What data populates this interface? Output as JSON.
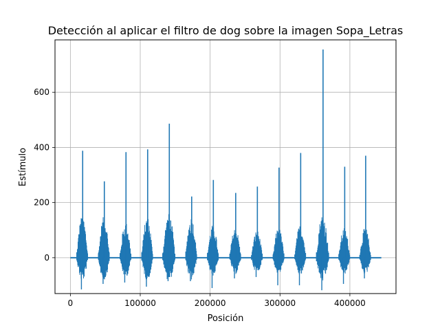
{
  "chart_data": {
    "type": "line",
    "title": "Detección al aplicar el filtro de dog sobre la imagen Sopa_Letras",
    "xlabel": "Posición",
    "ylabel": "Estímulo",
    "xlim": [
      -22000,
      466000
    ],
    "ylim": [
      -130,
      790
    ],
    "x_ticks": [
      0,
      100000,
      200000,
      300000,
      400000
    ],
    "x_tick_labels": [
      "0",
      "100000",
      "200000",
      "300000",
      "400000"
    ],
    "y_ticks": [
      0,
      200,
      400,
      600
    ],
    "y_tick_labels": [
      "0",
      "200",
      "400",
      "600"
    ],
    "grid": true,
    "line_color": "#1f77b4",
    "signal_x_range": [
      0,
      445000
    ],
    "baseline": 0,
    "bursts": [
      {
        "center": 17000,
        "half_width": 8000,
        "peak": 388,
        "trough": -115,
        "envelope": 155
      },
      {
        "center": 48000,
        "half_width": 8000,
        "peak": 277,
        "trough": -95,
        "envelope": 150
      },
      {
        "center": 79000,
        "half_width": 8000,
        "peak": 383,
        "trough": -90,
        "envelope": 130
      },
      {
        "center": 110000,
        "half_width": 8000,
        "peak": 393,
        "trough": -105,
        "envelope": 150
      },
      {
        "center": 141000,
        "half_width": 9000,
        "peak": 486,
        "trough": -85,
        "envelope": 160
      },
      {
        "center": 173000,
        "half_width": 8000,
        "peak": 222,
        "trough": -85,
        "envelope": 150
      },
      {
        "center": 204000,
        "half_width": 8000,
        "peak": 282,
        "trough": -110,
        "envelope": 120
      },
      {
        "center": 236000,
        "half_width": 8000,
        "peak": 235,
        "trough": -75,
        "envelope": 110
      },
      {
        "center": 267000,
        "half_width": 8000,
        "peak": 258,
        "trough": -70,
        "envelope": 100
      },
      {
        "center": 298000,
        "half_width": 8000,
        "peak": 327,
        "trough": -100,
        "envelope": 110
      },
      {
        "center": 329000,
        "half_width": 8000,
        "peak": 380,
        "trough": -100,
        "envelope": 120
      },
      {
        "center": 361000,
        "half_width": 9000,
        "peak": 755,
        "trough": -118,
        "envelope": 160
      },
      {
        "center": 392000,
        "half_width": 8000,
        "peak": 330,
        "trough": -95,
        "envelope": 110
      },
      {
        "center": 422000,
        "half_width": 8000,
        "peak": 370,
        "trough": -75,
        "envelope": 110
      }
    ]
  }
}
